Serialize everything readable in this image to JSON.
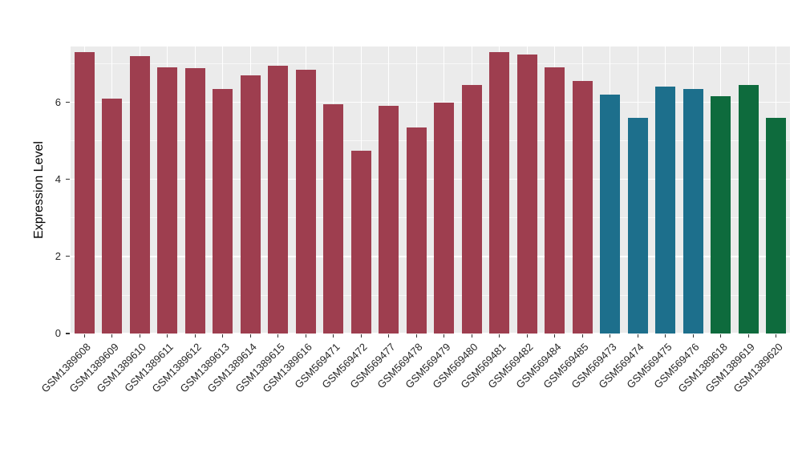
{
  "chart_data": {
    "type": "bar",
    "title": "",
    "xlabel": "",
    "ylabel": "Expression Level",
    "ylim": [
      0,
      7.45
    ],
    "yticks_major": [
      0,
      2,
      4,
      6
    ],
    "yticks_minor": [
      1,
      3,
      5,
      7
    ],
    "grid": "on",
    "legend": "none",
    "plot_background": "#EBEBEB",
    "group_colors": {
      "group1": "#9E3E4F",
      "group2": "#1D6F8C",
      "group3": "#0E6B3D"
    },
    "bars": [
      {
        "label": "GSM1389608",
        "value": 7.3,
        "color": "#9E3E4F"
      },
      {
        "label": "GSM1389609",
        "value": 6.1,
        "color": "#9E3E4F"
      },
      {
        "label": "GSM1389610",
        "value": 7.2,
        "color": "#9E3E4F"
      },
      {
        "label": "GSM1389611",
        "value": 6.9,
        "color": "#9E3E4F"
      },
      {
        "label": "GSM1389612",
        "value": 6.88,
        "color": "#9E3E4F"
      },
      {
        "label": "GSM1389613",
        "value": 6.35,
        "color": "#9E3E4F"
      },
      {
        "label": "GSM1389614",
        "value": 6.7,
        "color": "#9E3E4F"
      },
      {
        "label": "GSM1389615",
        "value": 6.95,
        "color": "#9E3E4F"
      },
      {
        "label": "GSM1389616",
        "value": 6.85,
        "color": "#9E3E4F"
      },
      {
        "label": "GSM569471",
        "value": 5.95,
        "color": "#9E3E4F"
      },
      {
        "label": "GSM569472",
        "value": 4.75,
        "color": "#9E3E4F"
      },
      {
        "label": "GSM569477",
        "value": 5.9,
        "color": "#9E3E4F"
      },
      {
        "label": "GSM569478",
        "value": 5.35,
        "color": "#9E3E4F"
      },
      {
        "label": "GSM569479",
        "value": 6.0,
        "color": "#9E3E4F"
      },
      {
        "label": "GSM569480",
        "value": 6.45,
        "color": "#9E3E4F"
      },
      {
        "label": "GSM569481",
        "value": 7.3,
        "color": "#9E3E4F"
      },
      {
        "label": "GSM569482",
        "value": 7.25,
        "color": "#9E3E4F"
      },
      {
        "label": "GSM569484",
        "value": 6.9,
        "color": "#9E3E4F"
      },
      {
        "label": "GSM569485",
        "value": 6.55,
        "color": "#9E3E4F"
      },
      {
        "label": "GSM569473",
        "value": 6.2,
        "color": "#1D6F8C"
      },
      {
        "label": "GSM569474",
        "value": 5.6,
        "color": "#1D6F8C"
      },
      {
        "label": "GSM569475",
        "value": 6.4,
        "color": "#1D6F8C"
      },
      {
        "label": "GSM569476",
        "value": 6.35,
        "color": "#1D6F8C"
      },
      {
        "label": "GSM1389618",
        "value": 6.15,
        "color": "#0E6B3D"
      },
      {
        "label": "GSM1389619",
        "value": 6.45,
        "color": "#0E6B3D"
      },
      {
        "label": "GSM1389620",
        "value": 5.6,
        "color": "#0E6B3D"
      }
    ]
  }
}
